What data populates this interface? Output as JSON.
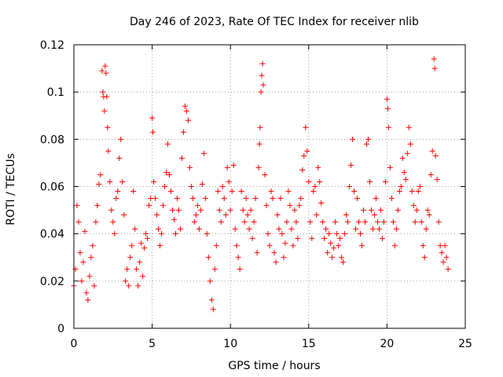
{
  "chart_data": {
    "type": "scatter",
    "title": "Day 246 of 2023, Rate Of TEC Index for receiver nlib",
    "xlabel": "GPS time / hours",
    "ylabel": "ROTI / TECUs",
    "xlim": [
      0,
      25
    ],
    "ylim": [
      0,
      0.12
    ],
    "x_ticks": [
      0,
      5,
      10,
      15,
      20,
      25
    ],
    "x_tick_labels": [
      "0",
      "5",
      "10",
      "15",
      "20",
      "25"
    ],
    "y_ticks": [
      0,
      0.02,
      0.04,
      0.06,
      0.08,
      0.1,
      0.12
    ],
    "y_tick_labels": [
      "0",
      "0.02",
      "0.04",
      "0.06",
      "0.08",
      "0.1",
      "0.12"
    ],
    "grid": true,
    "marker": "+",
    "marker_color": "#ff0000",
    "series": [
      {
        "name": "ROTI",
        "points": [
          [
            0.0,
            0.018
          ],
          [
            0.1,
            0.025
          ],
          [
            0.2,
            0.052
          ],
          [
            0.3,
            0.045
          ],
          [
            0.4,
            0.032
          ],
          [
            0.5,
            0.02
          ],
          [
            0.6,
            0.028
          ],
          [
            0.7,
            0.041
          ],
          [
            0.8,
            0.015
          ],
          [
            0.9,
            0.012
          ],
          [
            1.0,
            0.022
          ],
          [
            1.1,
            0.03
          ],
          [
            1.2,
            0.035
          ],
          [
            1.3,
            0.018
          ],
          [
            1.4,
            0.045
          ],
          [
            1.5,
            0.052
          ],
          [
            1.6,
            0.061
          ],
          [
            1.7,
            0.065
          ],
          [
            1.8,
            0.109
          ],
          [
            1.85,
            0.1
          ],
          [
            1.9,
            0.098
          ],
          [
            1.95,
            0.092
          ],
          [
            2.0,
            0.111
          ],
          [
            2.05,
            0.108
          ],
          [
            2.1,
            0.098
          ],
          [
            2.15,
            0.085
          ],
          [
            2.2,
            0.075
          ],
          [
            2.3,
            0.062
          ],
          [
            2.4,
            0.05
          ],
          [
            2.5,
            0.045
          ],
          [
            2.6,
            0.04
          ],
          [
            2.7,
            0.055
          ],
          [
            2.8,
            0.058
          ],
          [
            2.9,
            0.072
          ],
          [
            3.0,
            0.08
          ],
          [
            3.1,
            0.062
          ],
          [
            3.2,
            0.048
          ],
          [
            3.3,
            0.02
          ],
          [
            3.4,
            0.025
          ],
          [
            3.5,
            0.018
          ],
          [
            3.6,
            0.03
          ],
          [
            3.7,
            0.035
          ],
          [
            3.8,
            0.058
          ],
          [
            3.9,
            0.042
          ],
          [
            4.0,
            0.025
          ],
          [
            4.1,
            0.018
          ],
          [
            4.2,
            0.028
          ],
          [
            4.3,
            0.036
          ],
          [
            4.4,
            0.022
          ],
          [
            4.5,
            0.034
          ],
          [
            4.6,
            0.04
          ],
          [
            4.7,
            0.038
          ],
          [
            4.8,
            0.052
          ],
          [
            4.9,
            0.055
          ],
          [
            5.0,
            0.089
          ],
          [
            5.05,
            0.083
          ],
          [
            5.1,
            0.062
          ],
          [
            5.2,
            0.055
          ],
          [
            5.3,
            0.048
          ],
          [
            5.4,
            0.042
          ],
          [
            5.5,
            0.035
          ],
          [
            5.6,
            0.04
          ],
          [
            5.7,
            0.052
          ],
          [
            5.8,
            0.06
          ],
          [
            5.9,
            0.066
          ],
          [
            6.0,
            0.078
          ],
          [
            6.1,
            0.065
          ],
          [
            6.2,
            0.058
          ],
          [
            6.3,
            0.05
          ],
          [
            6.4,
            0.046
          ],
          [
            6.5,
            0.04
          ],
          [
            6.6,
            0.055
          ],
          [
            6.7,
            0.05
          ],
          [
            6.8,
            0.042
          ],
          [
            6.9,
            0.072
          ],
          [
            7.0,
            0.083
          ],
          [
            7.1,
            0.094
          ],
          [
            7.2,
            0.092
          ],
          [
            7.3,
            0.088
          ],
          [
            7.4,
            0.068
          ],
          [
            7.5,
            0.06
          ],
          [
            7.6,
            0.055
          ],
          [
            7.7,
            0.045
          ],
          [
            7.8,
            0.048
          ],
          [
            7.9,
            0.052
          ],
          [
            8.0,
            0.042
          ],
          [
            8.1,
            0.05
          ],
          [
            8.2,
            0.061
          ],
          [
            8.3,
            0.074
          ],
          [
            8.4,
            0.055
          ],
          [
            8.5,
            0.04
          ],
          [
            8.6,
            0.03
          ],
          [
            8.7,
            0.02
          ],
          [
            8.8,
            0.012
          ],
          [
            8.9,
            0.008
          ],
          [
            9.0,
            0.025
          ],
          [
            9.1,
            0.035
          ],
          [
            9.2,
            0.058
          ],
          [
            9.3,
            0.05
          ],
          [
            9.4,
            0.045
          ],
          [
            9.5,
            0.06
          ],
          [
            9.6,
            0.055
          ],
          [
            9.7,
            0.048
          ],
          [
            9.8,
            0.068
          ],
          [
            9.9,
            0.062
          ],
          [
            10.0,
            0.05
          ],
          [
            10.1,
            0.058
          ],
          [
            10.2,
            0.069
          ],
          [
            10.3,
            0.042
          ],
          [
            10.4,
            0.035
          ],
          [
            10.5,
            0.03
          ],
          [
            10.6,
            0.025
          ],
          [
            10.7,
            0.058
          ],
          [
            10.8,
            0.05
          ],
          [
            10.9,
            0.045
          ],
          [
            11.0,
            0.055
          ],
          [
            11.1,
            0.048
          ],
          [
            11.2,
            0.042
          ],
          [
            11.3,
            0.05
          ],
          [
            11.4,
            0.038
          ],
          [
            11.5,
            0.045
          ],
          [
            11.6,
            0.055
          ],
          [
            11.7,
            0.032
          ],
          [
            11.8,
            0.068
          ],
          [
            11.85,
            0.078
          ],
          [
            11.9,
            0.085
          ],
          [
            11.95,
            0.1
          ],
          [
            12.0,
            0.107
          ],
          [
            12.05,
            0.112
          ],
          [
            12.1,
            0.103
          ],
          [
            12.2,
            0.065
          ],
          [
            12.3,
            0.052
          ],
          [
            12.4,
            0.04
          ],
          [
            12.5,
            0.035
          ],
          [
            12.6,
            0.058
          ],
          [
            12.7,
            0.055
          ],
          [
            12.8,
            0.032
          ],
          [
            12.9,
            0.028
          ],
          [
            13.0,
            0.048
          ],
          [
            13.1,
            0.042
          ],
          [
            13.2,
            0.055
          ],
          [
            13.3,
            0.04
          ],
          [
            13.4,
            0.03
          ],
          [
            13.5,
            0.036
          ],
          [
            13.6,
            0.045
          ],
          [
            13.7,
            0.058
          ],
          [
            13.8,
            0.052
          ],
          [
            13.9,
            0.042
          ],
          [
            14.0,
            0.035
          ],
          [
            14.1,
            0.05
          ],
          [
            14.2,
            0.045
          ],
          [
            14.3,
            0.038
          ],
          [
            14.4,
            0.052
          ],
          [
            14.5,
            0.055
          ],
          [
            14.6,
            0.067
          ],
          [
            14.7,
            0.073
          ],
          [
            14.8,
            0.085
          ],
          [
            14.9,
            0.075
          ],
          [
            15.0,
            0.062
          ],
          [
            15.1,
            0.045
          ],
          [
            15.2,
            0.038
          ],
          [
            15.3,
            0.058
          ],
          [
            15.4,
            0.06
          ],
          [
            15.5,
            0.048
          ],
          [
            15.6,
            0.068
          ],
          [
            15.7,
            0.062
          ],
          [
            15.8,
            0.053
          ],
          [
            15.9,
            0.045
          ],
          [
            16.0,
            0.038
          ],
          [
            16.1,
            0.042
          ],
          [
            16.2,
            0.032
          ],
          [
            16.3,
            0.04
          ],
          [
            16.4,
            0.036
          ],
          [
            16.5,
            0.03
          ],
          [
            16.6,
            0.034
          ],
          [
            16.7,
            0.045
          ],
          [
            16.8,
            0.04
          ],
          [
            16.9,
            0.035
          ],
          [
            17.0,
            0.038
          ],
          [
            17.1,
            0.03
          ],
          [
            17.2,
            0.028
          ],
          [
            17.3,
            0.04
          ],
          [
            17.4,
            0.048
          ],
          [
            17.5,
            0.045
          ],
          [
            17.6,
            0.06
          ],
          [
            17.7,
            0.069
          ],
          [
            17.8,
            0.08
          ],
          [
            17.9,
            0.058
          ],
          [
            18.0,
            0.042
          ],
          [
            18.1,
            0.055
          ],
          [
            18.2,
            0.045
          ],
          [
            18.3,
            0.04
          ],
          [
            18.4,
            0.035
          ],
          [
            18.5,
            0.05
          ],
          [
            18.6,
            0.045
          ],
          [
            18.7,
            0.078
          ],
          [
            18.8,
            0.08
          ],
          [
            18.9,
            0.062
          ],
          [
            19.0,
            0.05
          ],
          [
            19.1,
            0.042
          ],
          [
            19.2,
            0.048
          ],
          [
            19.3,
            0.055
          ],
          [
            19.4,
            0.045
          ],
          [
            19.5,
            0.042
          ],
          [
            19.6,
            0.05
          ],
          [
            19.7,
            0.038
          ],
          [
            19.8,
            0.045
          ],
          [
            19.9,
            0.062
          ],
          [
            20.0,
            0.097
          ],
          [
            20.05,
            0.093
          ],
          [
            20.1,
            0.085
          ],
          [
            20.2,
            0.068
          ],
          [
            20.3,
            0.055
          ],
          [
            20.4,
            0.045
          ],
          [
            20.5,
            0.035
          ],
          [
            20.6,
            0.042
          ],
          [
            20.7,
            0.05
          ],
          [
            20.8,
            0.058
          ],
          [
            20.9,
            0.06
          ],
          [
            21.0,
            0.072
          ],
          [
            21.1,
            0.066
          ],
          [
            21.2,
            0.063
          ],
          [
            21.3,
            0.074
          ],
          [
            21.4,
            0.085
          ],
          [
            21.5,
            0.078
          ],
          [
            21.6,
            0.058
          ],
          [
            21.7,
            0.052
          ],
          [
            21.8,
            0.045
          ],
          [
            21.9,
            0.05
          ],
          [
            22.0,
            0.058
          ],
          [
            22.1,
            0.06
          ],
          [
            22.2,
            0.045
          ],
          [
            22.3,
            0.035
          ],
          [
            22.4,
            0.03
          ],
          [
            22.5,
            0.042
          ],
          [
            22.6,
            0.05
          ],
          [
            22.7,
            0.048
          ],
          [
            22.8,
            0.065
          ],
          [
            22.9,
            0.075
          ],
          [
            23.0,
            0.114
          ],
          [
            23.05,
            0.11
          ],
          [
            23.1,
            0.073
          ],
          [
            23.2,
            0.063
          ],
          [
            23.3,
            0.045
          ],
          [
            23.4,
            0.035
          ],
          [
            23.5,
            0.032
          ],
          [
            23.6,
            0.028
          ],
          [
            23.7,
            0.035
          ],
          [
            23.8,
            0.03
          ],
          [
            23.9,
            0.025
          ]
        ]
      }
    ]
  }
}
